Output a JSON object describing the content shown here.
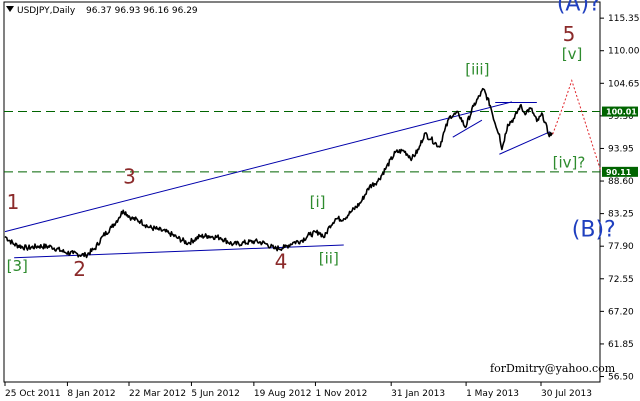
{
  "header": {
    "symbol": "USDJPY,Daily",
    "ohlc": "96.37 96.93 96.16 96.29"
  },
  "watermark": "forDmitry@yahoo.com",
  "colors": {
    "price": "#000000",
    "channel": "#0000aa",
    "level": "#006400",
    "level_label_bg": "#006400",
    "forecast": "#e0242a",
    "wave_red": "#8b2a2a",
    "wave_green": "#2e8b2e",
    "wave_blue": "#1f3fbf"
  },
  "chart_data": {
    "type": "line",
    "x_ticks": [
      "25 Oct 2011",
      "8 Jan 2012",
      "22 Mar 2012",
      "5 Jun 2012",
      "19 Aug 2012",
      "1 Nov 2012",
      "31 Jan 2013",
      "1 May 2013",
      "30 Jul 2013"
    ],
    "y_ticks": [
      115.35,
      110.0,
      104.65,
      99.3,
      93.95,
      88.6,
      83.25,
      77.9,
      72.55,
      67.2,
      61.85,
      56.5
    ],
    "ylim": [
      55.6,
      118.0
    ],
    "series": [
      {
        "values": [
          [
            "2011-10-25",
            79.5
          ],
          [
            "2011-11-05",
            78.2
          ],
          [
            "2011-11-20",
            77.6
          ],
          [
            "2011-12-05",
            77.9
          ],
          [
            "2011-12-20",
            77.8
          ],
          [
            "2012-01-05",
            76.9
          ],
          [
            "2012-01-15",
            76.7
          ],
          [
            "2012-01-30",
            76.4
          ],
          [
            "2012-02-10",
            77.5
          ],
          [
            "2012-02-20",
            79.6
          ],
          [
            "2012-03-01",
            81.0
          ],
          [
            "2012-03-10",
            82.6
          ],
          [
            "2012-03-15",
            83.8
          ],
          [
            "2012-03-25",
            82.5
          ],
          [
            "2012-04-05",
            82.0
          ],
          [
            "2012-04-15",
            81.0
          ],
          [
            "2012-04-25",
            80.7
          ],
          [
            "2012-05-10",
            80.0
          ],
          [
            "2012-05-20",
            79.2
          ],
          [
            "2012-06-01",
            78.4
          ],
          [
            "2012-06-15",
            79.5
          ],
          [
            "2012-06-25",
            79.6
          ],
          [
            "2012-07-10",
            79.3
          ],
          [
            "2012-07-25",
            78.2
          ],
          [
            "2012-08-05",
            78.4
          ],
          [
            "2012-08-20",
            78.7
          ],
          [
            "2012-09-01",
            78.4
          ],
          [
            "2012-09-13",
            77.5
          ],
          [
            "2012-09-25",
            77.7
          ],
          [
            "2012-10-05",
            78.5
          ],
          [
            "2012-10-15",
            78.8
          ],
          [
            "2012-10-25",
            79.8
          ],
          [
            "2012-11-05",
            80.2
          ],
          [
            "2012-11-12",
            79.4
          ],
          [
            "2012-11-18",
            81.2
          ],
          [
            "2012-11-25",
            82.4
          ],
          [
            "2012-12-05",
            82.4
          ],
          [
            "2012-12-15",
            83.7
          ],
          [
            "2012-12-25",
            85.0
          ],
          [
            "2013-01-05",
            87.7
          ],
          [
            "2013-01-15",
            88.6
          ],
          [
            "2013-01-25",
            90.8
          ],
          [
            "2013-02-05",
            93.3
          ],
          [
            "2013-02-15",
            93.6
          ],
          [
            "2013-02-25",
            92.3
          ],
          [
            "2013-03-05",
            93.8
          ],
          [
            "2013-03-12",
            96.4
          ],
          [
            "2013-03-20",
            95.5
          ],
          [
            "2013-03-30",
            94.2
          ],
          [
            "2013-04-05",
            96.8
          ],
          [
            "2013-04-12",
            99.3
          ],
          [
            "2013-04-22",
            99.7
          ],
          [
            "2013-04-30",
            97.4
          ],
          [
            "2013-05-10",
            100.9
          ],
          [
            "2013-05-22",
            103.7
          ],
          [
            "2013-05-30",
            101.0
          ],
          [
            "2013-06-05",
            98.0
          ],
          [
            "2013-06-10",
            96.3
          ],
          [
            "2013-06-13",
            93.8
          ],
          [
            "2013-06-20",
            97.9
          ],
          [
            "2013-06-28",
            98.9
          ],
          [
            "2013-07-05",
            101.0
          ],
          [
            "2013-07-10",
            99.8
          ],
          [
            "2013-07-18",
            100.5
          ],
          [
            "2013-07-25",
            98.4
          ],
          [
            "2013-08-01",
            99.5
          ],
          [
            "2013-08-08",
            96.3
          ],
          [
            "2013-08-13",
            96.29
          ]
        ]
      }
    ],
    "channel_lines": [
      {
        "from": [
          "2011-10-25",
          80.3
        ],
        "to": [
          "2013-06-25",
          101.6
        ]
      },
      {
        "from": [
          "2011-11-05",
          76.0
        ],
        "to": [
          "2012-12-05",
          78.1
        ]
      },
      {
        "from": [
          "2013-04-15",
          95.8
        ],
        "to": [
          "2013-05-20",
          98.6
        ]
      },
      {
        "from": [
          "2013-06-05",
          101.5
        ],
        "to": [
          "2013-07-25",
          101.5
        ]
      },
      {
        "from": [
          "2013-06-10",
          93.0
        ],
        "to": [
          "2013-08-10",
          96.7
        ]
      }
    ],
    "horizontal_levels": [
      {
        "value": 100.01,
        "label": "100.01"
      },
      {
        "value": 90.11,
        "label": "90.11"
      }
    ],
    "forecast_path": [
      [
        "2013-08-13",
        96.29
      ],
      [
        "2013-08-25",
        100.7
      ],
      [
        "2013-09-05",
        105.1
      ],
      [
        "2013-10-10",
        90.2
      ]
    ],
    "wave_labels": [
      {
        "text": "1",
        "x": "2011-10-27",
        "y": 84.0,
        "color": "red"
      },
      {
        "text": "[3]",
        "x": "2011-10-27",
        "y": 73.8,
        "color": "green"
      },
      {
        "text": "2",
        "x": "2012-01-15",
        "y": 73.0,
        "color": "red"
      },
      {
        "text": "3",
        "x": "2012-03-15",
        "y": 88.2,
        "color": "red"
      },
      {
        "text": "4",
        "x": "2012-09-13",
        "y": 74.2,
        "color": "red"
      },
      {
        "text": "[i]",
        "x": "2012-10-25",
        "y": 84.3,
        "color": "green"
      },
      {
        "text": "[ii]",
        "x": "2012-11-05",
        "y": 75.1,
        "color": "green"
      },
      {
        "text": "[iii]",
        "x": "2013-04-30",
        "y": 106.1,
        "color": "green"
      },
      {
        "text": "[iv]?",
        "x": "2013-08-13",
        "y": 90.8,
        "color": "green"
      },
      {
        "text": "[v]",
        "x": "2013-08-24",
        "y": 108.6,
        "color": "green"
      },
      {
        "text": "5",
        "x": "2013-08-25",
        "y": 111.6,
        "color": "red"
      },
      {
        "text": "(A)?",
        "x": "2013-08-18",
        "y": 116.6,
        "color": "blue"
      },
      {
        "text": "(B)?",
        "x": "2013-09-05",
        "y": 79.5,
        "color": "blue"
      }
    ]
  }
}
